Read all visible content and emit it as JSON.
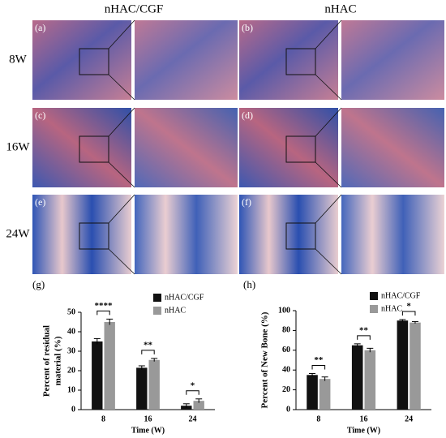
{
  "figure": {
    "columns": [
      "nHAC/CGF",
      "nHAC"
    ],
    "rows": [
      "8W",
      "16W",
      "24W"
    ],
    "panels": [
      "(a)",
      "(b)",
      "(c)",
      "(d)",
      "(e)",
      "(f)"
    ]
  },
  "chart_data": [
    {
      "type": "bar",
      "title": "(g)",
      "ylabel": [
        "Percent of residual",
        "material  (%)"
      ],
      "xlabel": "Time (W)",
      "categories": [
        "8",
        "16",
        "24"
      ],
      "series": [
        {
          "name": "nHAC/CGF",
          "color": "#111111",
          "values": [
            35,
            21.5,
            2
          ],
          "errors": [
            1.5,
            1,
            1
          ]
        },
        {
          "name": "nHAC",
          "color": "#999999",
          "values": [
            45,
            25.5,
            4.5
          ],
          "errors": [
            1.5,
            0.8,
            1
          ]
        }
      ],
      "annotations": [
        "****",
        "**",
        "*"
      ],
      "ylim": [
        0,
        50
      ],
      "yticks": [
        0,
        10,
        20,
        30,
        40,
        50
      ],
      "legend": "top-right"
    },
    {
      "type": "bar",
      "title": "(h)",
      "ylabel": "Percent of New Bone (%)",
      "xlabel": "Time (W)",
      "categories": [
        "8",
        "16",
        "24"
      ],
      "series": [
        {
          "name": "nHAC/CGF",
          "color": "#111111",
          "values": [
            35,
            65,
            90
          ],
          "errors": [
            1.5,
            1.5,
            1
          ]
        },
        {
          "name": "nHAC",
          "color": "#999999",
          "values": [
            31,
            60,
            88
          ],
          "errors": [
            2,
            2,
            1
          ]
        }
      ],
      "annotations": [
        "**",
        "**",
        "*"
      ],
      "ylim": [
        0,
        100
      ],
      "yticks": [
        0,
        20,
        40,
        60,
        80,
        100
      ],
      "legend": "top-right"
    }
  ]
}
